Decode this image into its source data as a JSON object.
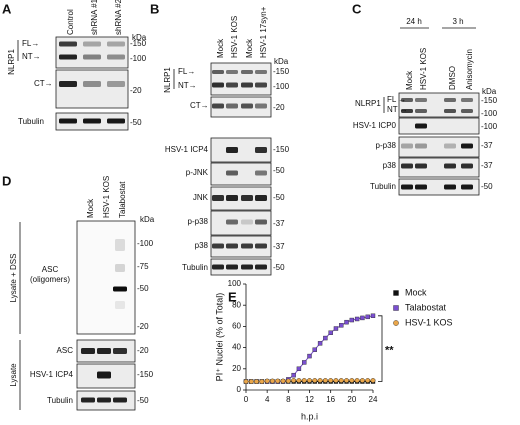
{
  "panels": {
    "A": {
      "label": "A",
      "lanes": [
        "Control",
        "shRNA #1",
        "shRNA #2"
      ],
      "kda_unit": "kDa",
      "group": "NLRP1",
      "rows": [
        "FL→",
        "NT→",
        "CT→",
        "Tubulin"
      ],
      "markers": [
        "-150",
        "-100",
        "-20",
        "-50"
      ]
    },
    "B": {
      "label": "B",
      "lanes": [
        "Mock",
        "HSV-1 KOS",
        "Mock",
        "HSV-1 17syn+"
      ],
      "kda_unit": "kDa",
      "group": "NLRP1",
      "rows": [
        "FL→",
        "NT→",
        "CT→",
        "HSV-1 ICP4",
        "p-JNK",
        "JNK",
        "p-p38",
        "p38",
        "Tubulin"
      ],
      "markers": [
        "-150",
        "-100",
        "-20",
        "-150",
        "-50",
        "-50",
        "-37",
        "-37",
        "-50"
      ]
    },
    "C": {
      "label": "C",
      "timepoints": [
        "24 h",
        "3 h"
      ],
      "lanes": [
        "Mock",
        "HSV-1 KOS",
        "DMSO",
        "Anisomycin"
      ],
      "kda_unit": "kDa",
      "group": "NLRP1",
      "rows": [
        "FL →",
        "NT →",
        "HSV-1 ICP0",
        "p-p38",
        "p38",
        "Tubulin"
      ],
      "markers": [
        "-150",
        "-100",
        "-100",
        "-37",
        "-37",
        "-50"
      ]
    },
    "D": {
      "label": "D",
      "lanes": [
        "Mock",
        "HSV-1 KOS",
        "Talabostat"
      ],
      "kda_unit": "kDa",
      "sections": [
        "Lysate + DSS",
        "Lysate"
      ],
      "top_row": [
        "ASC",
        "(oligomers)"
      ],
      "top_markers": [
        "-100",
        "-75",
        "-50",
        "-20"
      ],
      "rows": [
        "ASC",
        "HSV-1 ICP4",
        "Tubulin"
      ],
      "markers": [
        "-20",
        "-150",
        "-50"
      ]
    }
  },
  "chart_data": {
    "type": "line",
    "label": "E",
    "x_label": "h.p.i",
    "y_label": "PI⁺ Nuclei (% of Total)",
    "annotation": "**",
    "x": [
      0,
      1,
      2,
      3,
      4,
      5,
      6,
      7,
      8,
      9,
      10,
      11,
      12,
      13,
      14,
      15,
      16,
      17,
      18,
      19,
      20,
      21,
      22,
      23,
      24
    ],
    "series": [
      {
        "name": "Mock",
        "color": "#111111",
        "marker": "square",
        "values": [
          8,
          8,
          8,
          8,
          8,
          8,
          8,
          8,
          8,
          8,
          8,
          8,
          8,
          8,
          8,
          8,
          8,
          8,
          8,
          8,
          8,
          8,
          8,
          8,
          8
        ]
      },
      {
        "name": "Talabostat",
        "color": "#7a4fd0",
        "marker": "square",
        "values": [
          8,
          8,
          8,
          8,
          8,
          8,
          8,
          8,
          10,
          14,
          20,
          26,
          32,
          38,
          44,
          49,
          54,
          58,
          61,
          64,
          66,
          67,
          68,
          69,
          70
        ]
      },
      {
        "name": "HSV-1 KOS",
        "color": "#e9a64a",
        "marker": "circle",
        "values": [
          8,
          8,
          8,
          8,
          8.5,
          8.5,
          8.5,
          8.5,
          8.5,
          9,
          9,
          9,
          9,
          9,
          9,
          9,
          9,
          9,
          9,
          9,
          9,
          9,
          9,
          9,
          9
        ]
      }
    ],
    "xlim": [
      0,
      24
    ],
    "xticks": [
      0,
      4,
      8,
      12,
      16,
      20,
      24
    ],
    "ylim": [
      0,
      100
    ],
    "yticks": [
      0,
      20,
      40,
      60,
      80,
      100
    ],
    "legend": "right"
  }
}
